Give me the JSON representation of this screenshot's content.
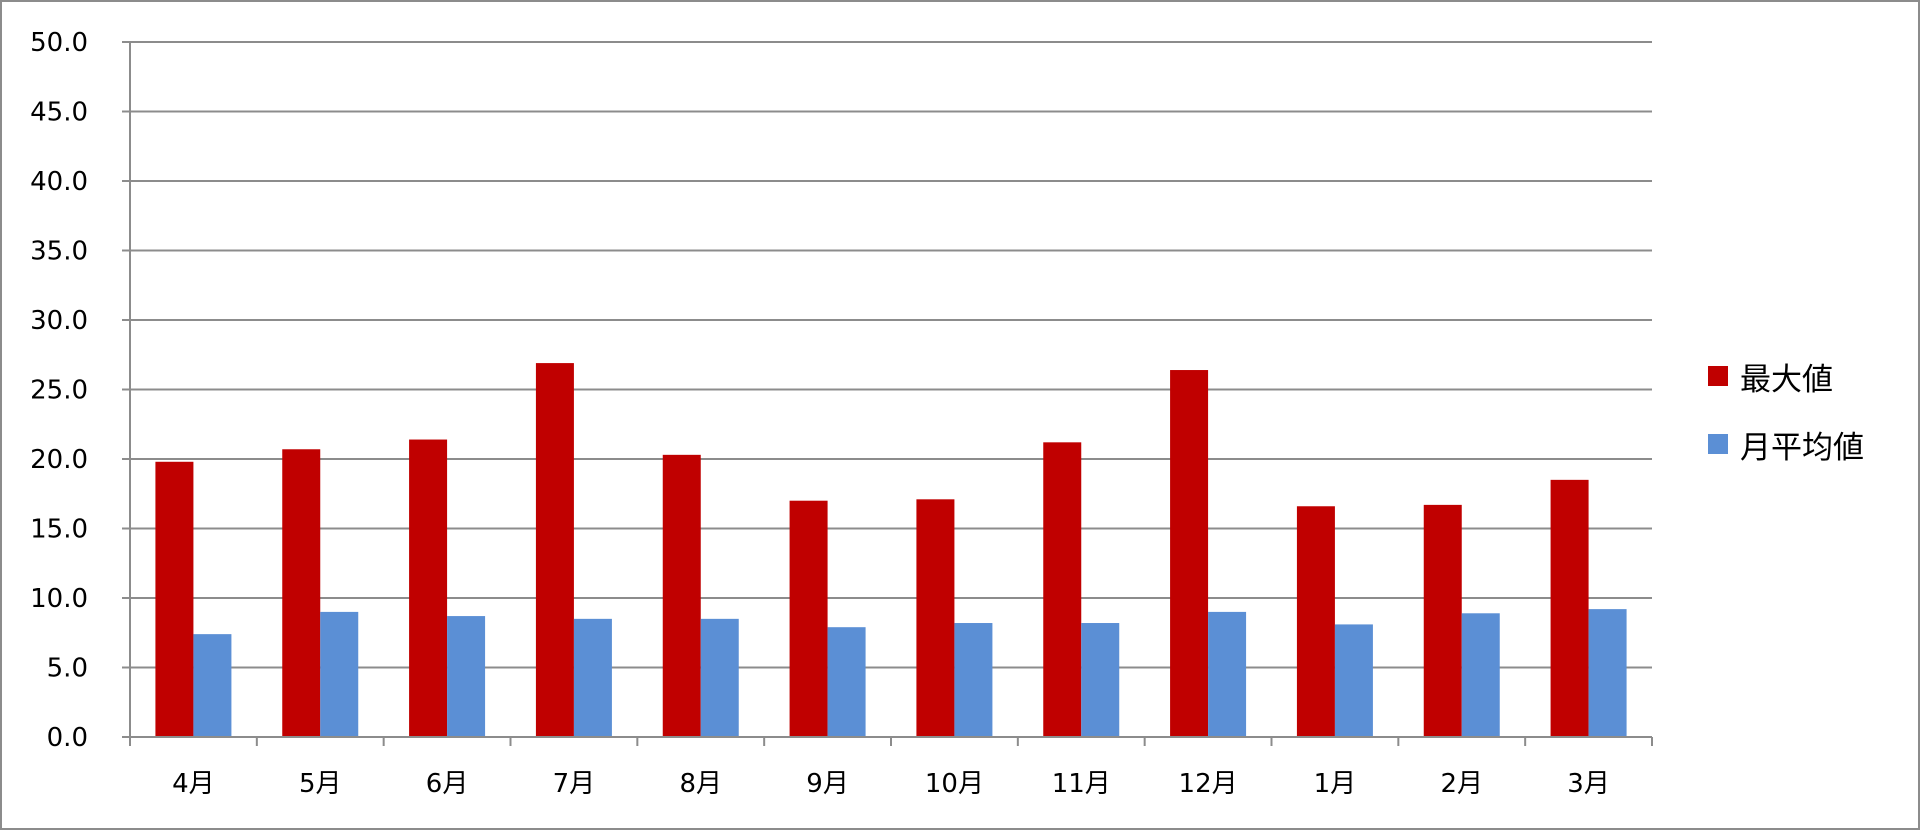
{
  "chart_data": {
    "type": "bar",
    "categories": [
      "4月",
      "5月",
      "6月",
      "7月",
      "8月",
      "9月",
      "10月",
      "11月",
      "12月",
      "1月",
      "2月",
      "3月"
    ],
    "series": [
      {
        "name": "最大値",
        "color": "#c00000",
        "values": [
          19.8,
          20.7,
          21.4,
          26.9,
          20.3,
          17.0,
          17.1,
          21.2,
          26.4,
          16.6,
          16.7,
          18.5
        ]
      },
      {
        "name": "月平均値",
        "color": "#5b8fd5",
        "values": [
          7.4,
          9.0,
          8.7,
          8.5,
          8.5,
          7.9,
          8.2,
          8.2,
          9.0,
          8.1,
          8.9,
          9.2
        ]
      }
    ],
    "ylim": [
      0,
      50
    ],
    "yticks": [
      "0.0",
      "5.0",
      "10.0",
      "15.0",
      "20.0",
      "25.0",
      "30.0",
      "35.0",
      "40.0",
      "45.0",
      "50.0"
    ],
    "grid": true,
    "legend_position": "right"
  }
}
